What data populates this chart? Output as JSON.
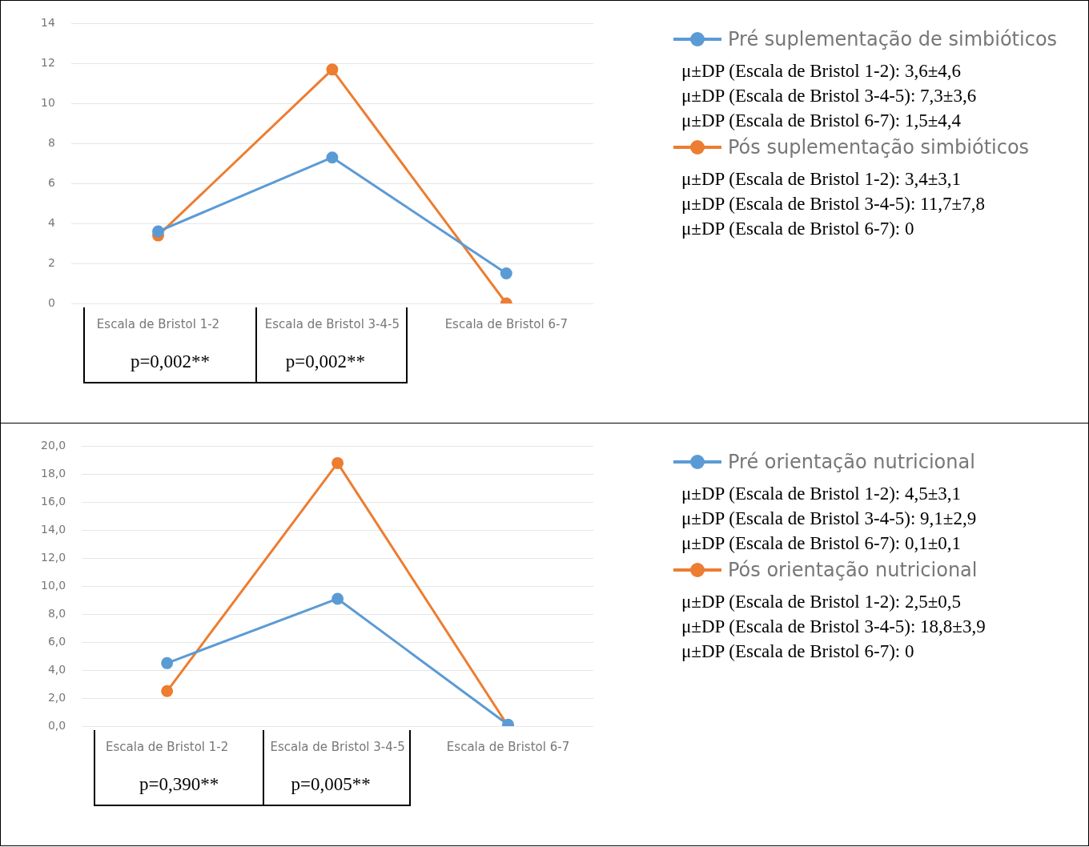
{
  "chart_data": [
    {
      "type": "line",
      "categories": [
        "Escala de Bristol 1-2",
        "Escala de Bristol 3-4-5",
        "Escala de Bristol 6-7"
      ],
      "series": [
        {
          "name": "Pré suplementação de simbióticos",
          "color": "#5b9bd5",
          "values": [
            3.6,
            7.3,
            1.5
          ]
        },
        {
          "name": "Pós suplementação simbióticos",
          "color": "#ed7d31",
          "values": [
            3.4,
            11.7,
            0
          ]
        }
      ],
      "ylim": [
        0,
        14
      ],
      "yticks": [
        0,
        2,
        4,
        6,
        8,
        10,
        12,
        14
      ],
      "grid": "y",
      "legend": "right",
      "marker": "circle",
      "line_style": "solid",
      "annotations": [
        "μ±DP (Escala de Bristol 1-2): 3,6±4,6",
        "μ±DP (Escala de Bristol 3-4-5): 7,3±3,6",
        "μ±DP (Escala de Bristol 6-7): 1,5±4,4",
        "μ±DP (Escala de Bristol 1-2): 3,4±3,1",
        "μ±DP (Escala de Bristol 3-4-5): 11,7±7,8",
        "μ±DP (Escala de Bristol 6-7): 0",
        "p=0,002**",
        "p=0,002**"
      ]
    },
    {
      "type": "line",
      "categories": [
        "Escala de Bristol 1-2",
        "Escala de Bristol 3-4-5",
        "Escala de Bristol 6-7"
      ],
      "series": [
        {
          "name": "Pré orientação nutricional",
          "color": "#5b9bd5",
          "values": [
            4.5,
            9.1,
            0.1
          ]
        },
        {
          "name": "Pós orientação nutricional",
          "color": "#ed7d31",
          "values": [
            2.5,
            18.8,
            0
          ]
        }
      ],
      "ylim": [
        0,
        20
      ],
      "yticks": [
        {
          "value": 0,
          "label": "0,0"
        },
        {
          "value": 2,
          "label": "2,0"
        },
        {
          "value": 4,
          "label": "4,0"
        },
        {
          "value": 6,
          "label": "6,0"
        },
        {
          "value": 8,
          "label": "8,0"
        },
        {
          "value": 10,
          "label": "10,0"
        },
        {
          "value": 12,
          "label": "12,0"
        },
        {
          "value": 14,
          "label": "14,0"
        },
        {
          "value": 16,
          "label": "16,0"
        },
        {
          "value": 18,
          "label": "18,0"
        },
        {
          "value": 20,
          "label": "20,0"
        }
      ],
      "grid": "y",
      "legend": "right",
      "marker": "circle",
      "line_style": "solid",
      "annotations": [
        "μ±DP (Escala de Bristol 1-2): 4,5±3,1",
        "μ±DP (Escala de Bristol 3-4-5): 9,1±2,9",
        "μ±DP (Escala de Bristol 6-7): 0,1±0,1",
        "μ±DP (Escala de Bristol 1-2): 2,5±0,5",
        "μ±DP (Escala de Bristol 3-4-5): 18,8±3,9",
        "μ±DP (Escala de Bristol 6-7): 0",
        "p=0,390**",
        "p=0,005**"
      ]
    }
  ]
}
